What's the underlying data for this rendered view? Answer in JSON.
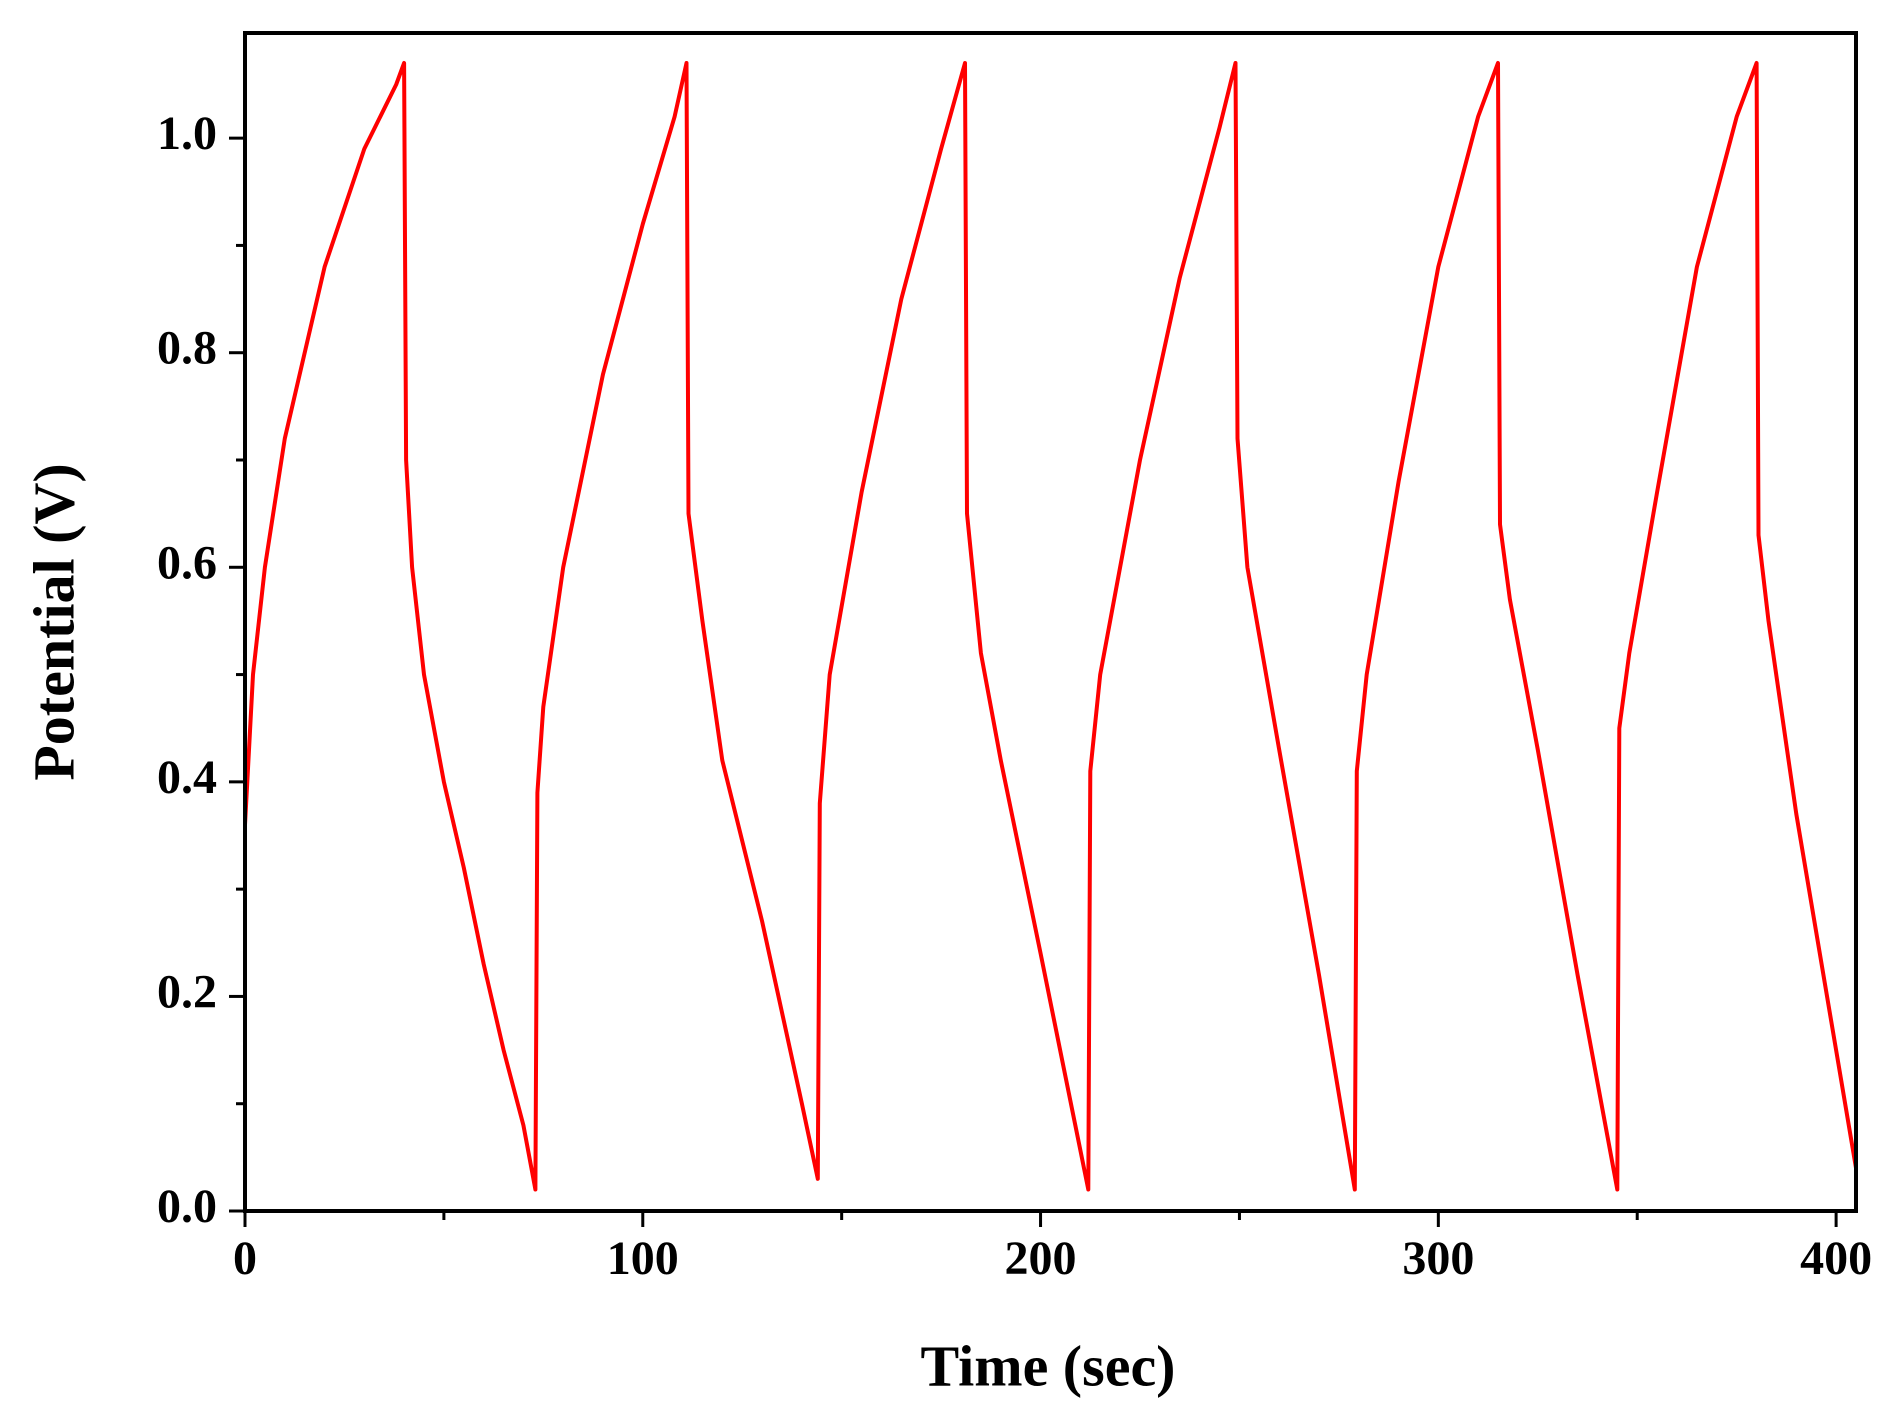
{
  "chart_data": {
    "type": "line",
    "x_label": "Time (sec)",
    "y_label": "Potential (V)",
    "xlim": [
      0,
      405
    ],
    "ylim": [
      0,
      1.098
    ],
    "xticks": [
      0,
      100,
      200,
      300,
      400
    ],
    "xminorticks": [
      50,
      150,
      250,
      350
    ],
    "yticks": [
      {
        "value": 0,
        "label": "0.0"
      },
      0.2,
      0.4,
      0.6,
      0.8,
      {
        "value": 1,
        "label": "1.0"
      }
    ],
    "yminorticks": [
      0.1,
      0.3,
      0.5,
      0.7,
      0.9
    ],
    "grid": false,
    "series": [
      {
        "name": "Potential",
        "color": "#ff0000",
        "x": [
          0,
          2,
          5,
          10,
          20,
          30,
          38,
          40,
          40.5,
          42,
          45,
          50,
          55,
          60,
          65,
          70,
          73,
          73.5,
          75,
          80,
          90,
          100,
          108,
          111,
          111.5,
          115,
          120,
          130,
          140,
          144,
          144.5,
          147,
          155,
          165,
          175,
          181,
          181.5,
          185,
          190,
          200,
          212,
          212.5,
          215,
          225,
          235,
          245,
          249,
          249.5,
          252,
          260,
          270,
          279,
          279.5,
          282,
          290,
          300,
          310,
          315,
          315.5,
          318,
          325,
          335,
          345,
          345.5,
          348,
          355,
          365,
          375,
          380,
          380.5,
          383,
          390,
          400,
          405
        ],
        "values": [
          0.36,
          0.5,
          0.6,
          0.72,
          0.88,
          0.99,
          1.05,
          1.07,
          0.7,
          0.6,
          0.5,
          0.4,
          0.32,
          0.23,
          0.15,
          0.08,
          0.02,
          0.39,
          0.47,
          0.6,
          0.78,
          0.92,
          1.02,
          1.07,
          0.65,
          0.55,
          0.42,
          0.27,
          0.1,
          0.03,
          0.38,
          0.5,
          0.67,
          0.85,
          0.99,
          1.07,
          0.65,
          0.52,
          0.42,
          0.24,
          0.02,
          0.41,
          0.5,
          0.7,
          0.87,
          1.01,
          1.07,
          0.72,
          0.6,
          0.43,
          0.22,
          0.02,
          0.41,
          0.5,
          0.68,
          0.88,
          1.02,
          1.07,
          0.64,
          0.57,
          0.43,
          0.22,
          0.02,
          0.45,
          0.52,
          0.67,
          0.88,
          1.02,
          1.07,
          0.63,
          0.55,
          0.37,
          0.15,
          0.04
        ]
      }
    ]
  }
}
